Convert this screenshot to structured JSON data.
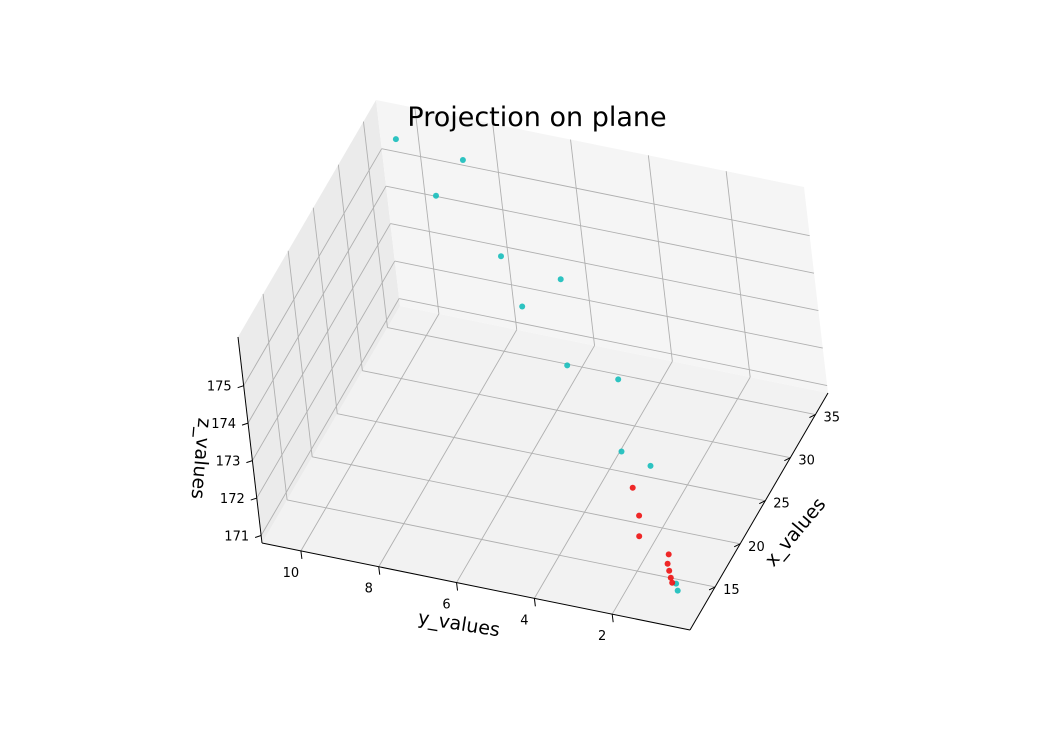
{
  "chart_data": {
    "type": "scatter",
    "title": "Projection on plane",
    "xlabel": "x_values",
    "ylabel": "y_values",
    "zlabel": "z_values",
    "xlim": [
      10,
      37.5
    ],
    "ylim": [
      0,
      11
    ],
    "zlim": [
      170.8,
      176.3
    ],
    "x_ticks": [
      "15",
      "20",
      "25",
      "30",
      "35"
    ],
    "y_ticks": [
      "2",
      "4",
      "6",
      "8",
      "10"
    ],
    "z_ticks": [
      "171",
      "172",
      "173",
      "174",
      "175"
    ],
    "grid": true,
    "series": [
      {
        "color": "#17bebb",
        "points": [
          {
            "x": 35,
            "y": 10.2,
            "z": 176.0
          },
          {
            "x": 35,
            "y": 8.5,
            "z": 175.8
          },
          {
            "x": 33,
            "y": 9.0,
            "z": 175.2
          },
          {
            "x": 30,
            "y": 7.0,
            "z": 174.7
          },
          {
            "x": 30,
            "y": 5.5,
            "z": 174.4
          },
          {
            "x": 27.5,
            "y": 6.2,
            "z": 174.1
          },
          {
            "x": 25,
            "y": 4.8,
            "z": 173.4
          },
          {
            "x": 25,
            "y": 3.5,
            "z": 173.3
          },
          {
            "x": 21,
            "y": 3.0,
            "z": 172.4
          },
          {
            "x": 20.5,
            "y": 2.2,
            "z": 172.3
          },
          {
            "x": 13,
            "y": 0.7,
            "z": 171.2
          },
          {
            "x": 12.5,
            "y": 0.6,
            "z": 171.15
          }
        ]
      },
      {
        "color": "#ee1111",
        "points": [
          {
            "x": 19,
            "y": 2.5,
            "z": 172.0
          },
          {
            "x": 17,
            "y": 2.1,
            "z": 171.8
          },
          {
            "x": 16,
            "y": 2.0,
            "z": 171.5
          },
          {
            "x": 15.5,
            "y": 1.2,
            "z": 171.3
          },
          {
            "x": 14.5,
            "y": 1.1,
            "z": 171.3
          },
          {
            "x": 14,
            "y": 1.0,
            "z": 171.25
          },
          {
            "x": 13.5,
            "y": 0.9,
            "z": 171.2
          },
          {
            "x": 13,
            "y": 0.8,
            "z": 171.2
          }
        ]
      }
    ]
  }
}
